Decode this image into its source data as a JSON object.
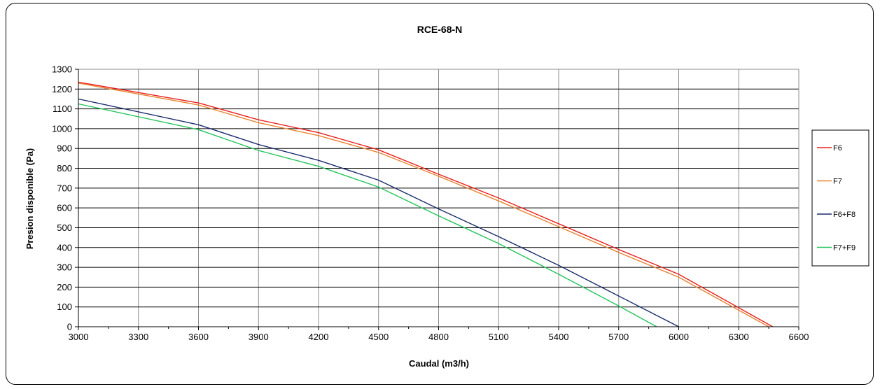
{
  "chart_data": {
    "type": "line",
    "title": "RCE-68-N",
    "xlabel": "Caudal (m3/h)",
    "ylabel": "Presion disponible (Pa)",
    "xlim": [
      3000,
      6600
    ],
    "ylim": [
      0,
      1300
    ],
    "xticks": [
      3000,
      3300,
      3600,
      3900,
      4200,
      4500,
      4800,
      5100,
      5400,
      5700,
      6000,
      6300,
      6600
    ],
    "yticks": [
      0,
      100,
      200,
      300,
      400,
      500,
      600,
      700,
      800,
      900,
      1000,
      1100,
      1200,
      1300
    ],
    "grid": true,
    "legend_position": "right",
    "series": [
      {
        "name": "F6",
        "color": "#e8201c",
        "points": [
          [
            3000,
            1235
          ],
          [
            3600,
            1130
          ],
          [
            3900,
            1045
          ],
          [
            4200,
            980
          ],
          [
            4500,
            893
          ],
          [
            4800,
            770
          ],
          [
            5100,
            650
          ],
          [
            5400,
            520
          ],
          [
            5700,
            390
          ],
          [
            6000,
            265
          ],
          [
            6470,
            0
          ]
        ]
      },
      {
        "name": "F7",
        "color": "#e8822e",
        "points": [
          [
            3000,
            1230
          ],
          [
            3600,
            1120
          ],
          [
            3900,
            1030
          ],
          [
            4200,
            965
          ],
          [
            4500,
            880
          ],
          [
            4800,
            760
          ],
          [
            5100,
            635
          ],
          [
            5400,
            505
          ],
          [
            5700,
            375
          ],
          [
            6000,
            250
          ],
          [
            6450,
            0
          ]
        ]
      },
      {
        "name": "F6+F8",
        "color": "#1a2a6c",
        "points": [
          [
            3000,
            1150
          ],
          [
            3600,
            1020
          ],
          [
            3900,
            920
          ],
          [
            4200,
            840
          ],
          [
            4500,
            740
          ],
          [
            4800,
            595
          ],
          [
            5100,
            455
          ],
          [
            5400,
            310
          ],
          [
            5700,
            155
          ],
          [
            6000,
            0
          ]
        ]
      },
      {
        "name": "F7+F9",
        "color": "#22c45a",
        "points": [
          [
            3000,
            1125
          ],
          [
            3600,
            995
          ],
          [
            3900,
            890
          ],
          [
            4200,
            810
          ],
          [
            4500,
            705
          ],
          [
            4800,
            560
          ],
          [
            5100,
            420
          ],
          [
            5400,
            265
          ],
          [
            5700,
            105
          ],
          [
            5890,
            0
          ]
        ]
      }
    ]
  }
}
